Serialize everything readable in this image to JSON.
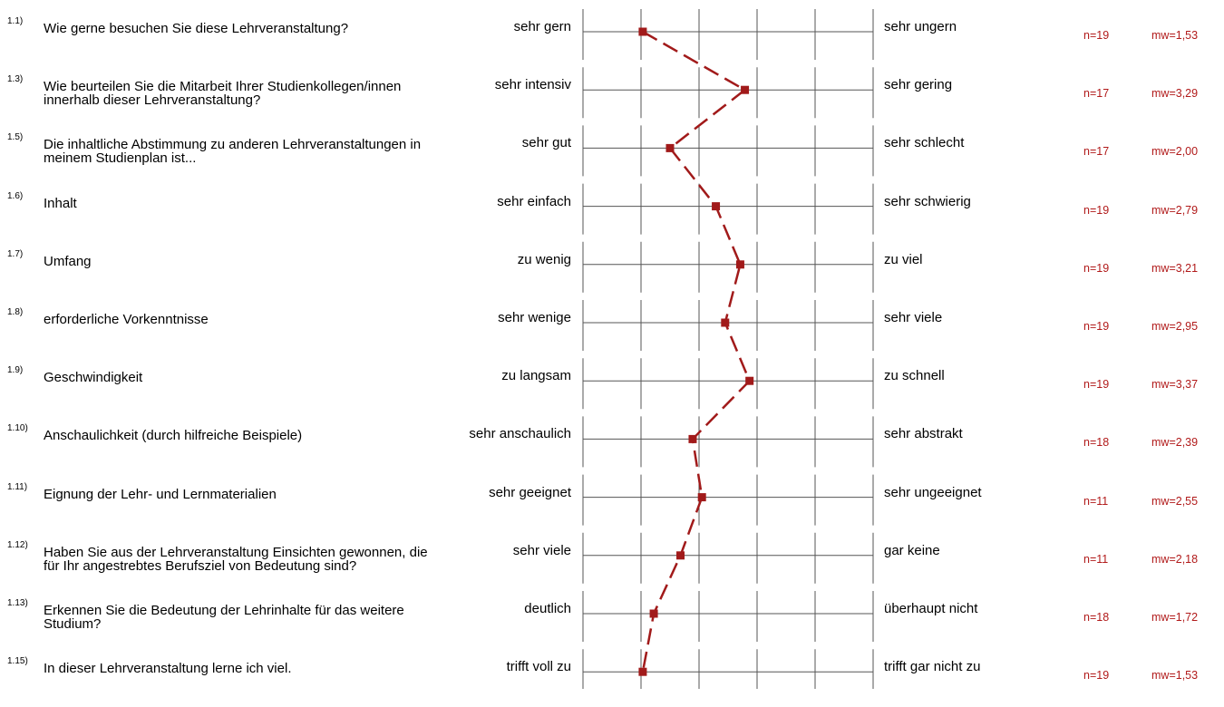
{
  "colors": {
    "line": "#a11a1a",
    "marker": "#a11a1a",
    "stats": "#b11a1a",
    "grid": "#555555"
  },
  "chart_data": {
    "type": "line",
    "orientation": "profile",
    "scale": [
      1,
      5
    ],
    "items": [
      {
        "num": "1.1)",
        "question": "Wie gerne besuchen Sie diese Lehrveranstaltung?",
        "left": "sehr gern",
        "right": "sehr ungern",
        "n": "n=19",
        "mw": "mw=1,53",
        "value": 1.53
      },
      {
        "num": "1.3)",
        "question": "Wie beurteilen Sie die Mitarbeit Ihrer Studienkollegen/innen innerhalb dieser Lehrveranstaltung?",
        "left": "sehr intensiv",
        "right": "sehr gering",
        "n": "n=17",
        "mw": "mw=3,29",
        "value": 3.29
      },
      {
        "num": "1.5)",
        "question": "Die inhaltliche Abstimmung zu anderen Lehrveranstaltungen in meinem Studienplan ist...",
        "left": "sehr gut",
        "right": "sehr schlecht",
        "n": "n=17",
        "mw": "mw=2,00",
        "value": 2.0
      },
      {
        "num": "1.6)",
        "question": "Inhalt",
        "left": "sehr einfach",
        "right": "sehr schwierig",
        "n": "n=19",
        "mw": "mw=2,79",
        "value": 2.79
      },
      {
        "num": "1.7)",
        "question": "Umfang",
        "left": "zu wenig",
        "right": "zu viel",
        "n": "n=19",
        "mw": "mw=3,21",
        "value": 3.21
      },
      {
        "num": "1.8)",
        "question": "erforderliche Vorkenntnisse",
        "left": "sehr wenige",
        "right": "sehr viele",
        "n": "n=19",
        "mw": "mw=2,95",
        "value": 2.95
      },
      {
        "num": "1.9)",
        "question": "Geschwindigkeit",
        "left": "zu langsam",
        "right": "zu schnell",
        "n": "n=19",
        "mw": "mw=3,37",
        "value": 3.37
      },
      {
        "num": "1.10)",
        "question": "Anschaulichkeit (durch hilfreiche Beispiele)",
        "left": "sehr anschaulich",
        "right": "sehr abstrakt",
        "n": "n=18",
        "mw": "mw=2,39",
        "value": 2.39
      },
      {
        "num": "1.11)",
        "question": "Eignung der Lehr- und Lernmaterialien",
        "left": "sehr geeignet",
        "right": "sehr ungeeignet",
        "n": "n=11",
        "mw": "mw=2,55",
        "value": 2.55
      },
      {
        "num": "1.12)",
        "question": "Haben Sie aus der Lehrveranstaltung Einsichten gewonnen, die für  Ihr angestrebtes Berufsziel von Bedeutung sind?",
        "left": "sehr viele",
        "right": "gar keine",
        "n": "n=11",
        "mw": "mw=2,18",
        "value": 2.18
      },
      {
        "num": "1.13)",
        "question": "Erkennen Sie die Bedeutung der Lehrinhalte für das weitere Studium?",
        "left": "deutlich",
        "right": "überhaupt nicht",
        "n": "n=18",
        "mw": "mw=1,72",
        "value": 1.72
      },
      {
        "num": "1.15)",
        "question": "In dieser Lehrveranstaltung lerne ich viel.",
        "left": "trifft voll zu",
        "right": "trifft gar nicht zu",
        "n": "n=19",
        "mw": "mw=1,53",
        "value": 1.53
      }
    ]
  }
}
